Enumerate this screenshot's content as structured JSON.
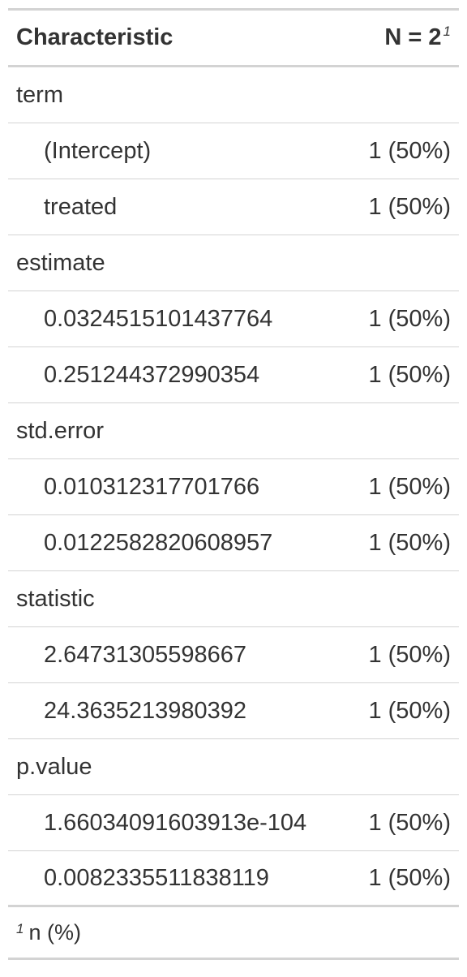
{
  "header": {
    "characteristic": "Characteristic",
    "n_label": "N = 2",
    "n_footnote_mark": "1"
  },
  "rows": [
    {
      "type": "group",
      "label": "term",
      "value": ""
    },
    {
      "type": "level",
      "label": "(Intercept)",
      "value": "1 (50%)"
    },
    {
      "type": "level",
      "label": "treated",
      "value": "1 (50%)"
    },
    {
      "type": "group",
      "label": "estimate",
      "value": ""
    },
    {
      "type": "level",
      "label": "0.0324515101437764",
      "value": "1 (50%)"
    },
    {
      "type": "level",
      "label": "0.251244372990354",
      "value": "1 (50%)"
    },
    {
      "type": "group",
      "label": "std.error",
      "value": ""
    },
    {
      "type": "level",
      "label": "0.010312317701766",
      "value": "1 (50%)"
    },
    {
      "type": "level",
      "label": "0.0122582820608957",
      "value": "1 (50%)"
    },
    {
      "type": "group",
      "label": "statistic",
      "value": ""
    },
    {
      "type": "level",
      "label": "2.64731305598667",
      "value": "1 (50%)"
    },
    {
      "type": "level",
      "label": "24.3635213980392",
      "value": "1 (50%)"
    },
    {
      "type": "group",
      "label": "p.value",
      "value": ""
    },
    {
      "type": "level",
      "label": "1.66034091603913e-104",
      "value": "1 (50%)"
    },
    {
      "type": "level",
      "label": "0.0082335511838119",
      "value": "1 (50%)"
    }
  ],
  "footnote": {
    "mark": "1",
    "text": "n (%)"
  }
}
